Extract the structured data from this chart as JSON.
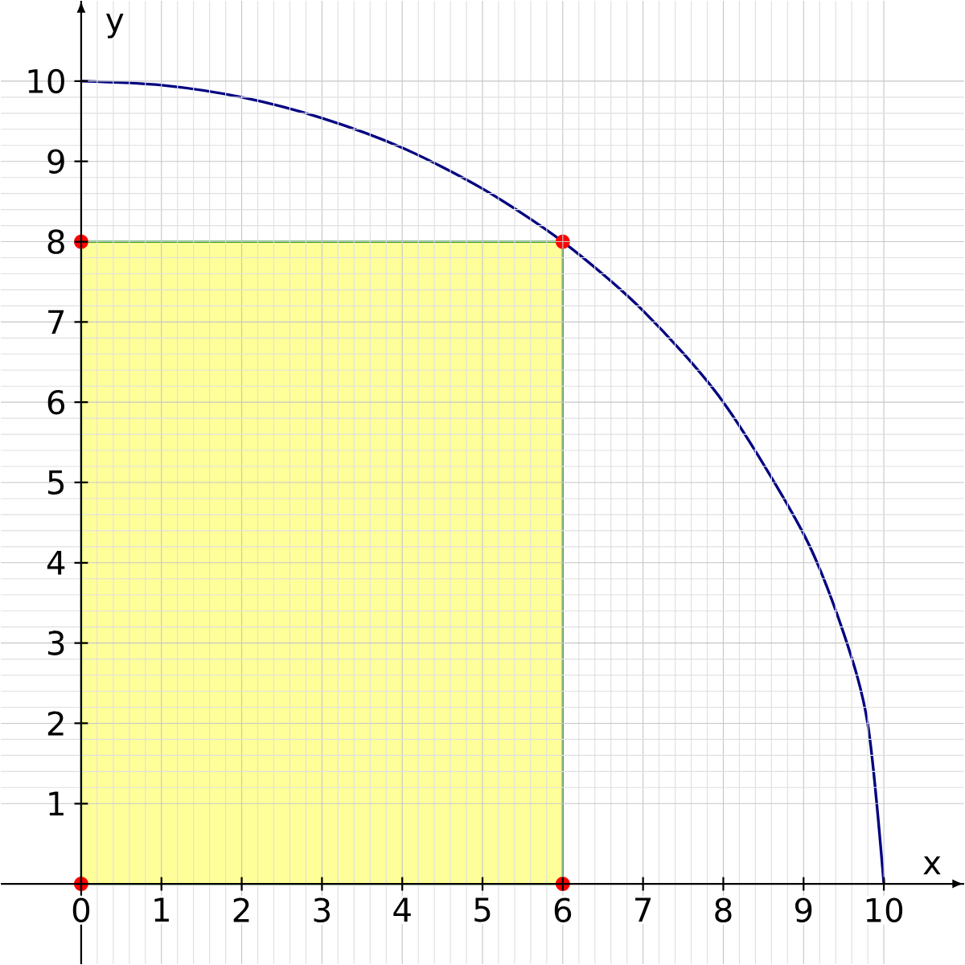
{
  "chart_data": {
    "type": "line",
    "xlabel": "x",
    "ylabel": "y",
    "xlim": [
      -1,
      11
    ],
    "ylim": [
      -1,
      11
    ],
    "xticks": [
      0,
      1,
      2,
      3,
      4,
      5,
      6,
      7,
      8,
      9,
      10
    ],
    "yticks": [
      1,
      2,
      3,
      4,
      5,
      6,
      7,
      8,
      9,
      10
    ],
    "grid": true,
    "series": [
      {
        "type": "area",
        "color": "#ffff99",
        "x": [
          0,
          6
        ],
        "values": [
          8,
          8
        ]
      },
      {
        "color": "#000080",
        "marker": "none",
        "x": [
          0,
          1,
          2,
          3,
          4,
          5,
          6,
          7,
          8,
          9,
          9.5,
          9.8,
          10
        ],
        "values": [
          10,
          9.95,
          9.8,
          9.54,
          9.17,
          8.66,
          8,
          7.14,
          6,
          4.36,
          3.12,
          1.99,
          0
        ]
      },
      {
        "type": "scatter",
        "color": "#ff0000",
        "marker": "circle",
        "x": [
          0,
          0,
          6,
          6
        ],
        "values": [
          0,
          8,
          0,
          8
        ]
      }
    ]
  }
}
